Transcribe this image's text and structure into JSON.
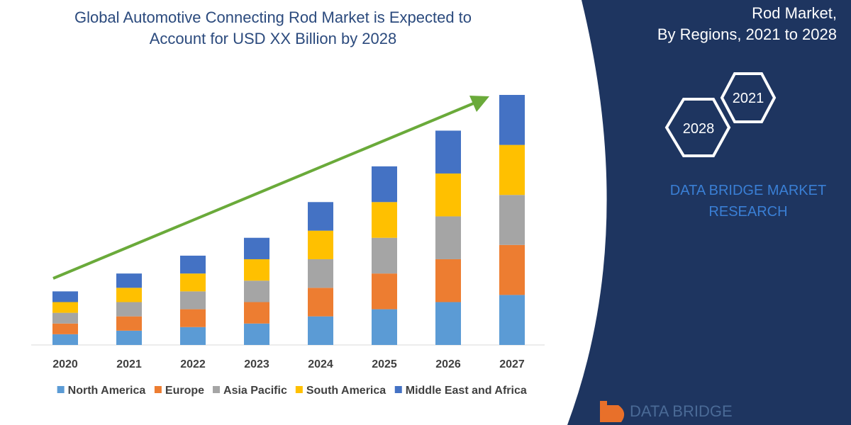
{
  "title": {
    "line1": "Global Automotive Connecting Rod Market is Expected to",
    "line2": "Account for USD XX Billion by 2028"
  },
  "side_panel": {
    "line1": "Rod Market,",
    "line2": "By Regions, 2021 to 2028",
    "hex_badges": [
      "2021",
      "2028"
    ],
    "brand_line1": "DATA BRIDGE MARKET",
    "brand_line2": "RESEARCH"
  },
  "logo": {
    "text": "DATA BRIDGE"
  },
  "colors": {
    "panel": "#1e3560",
    "trend_arrow": "#6aaa3a",
    "North America": "#5b9bd5",
    "Europe": "#ed7d31",
    "Asia Pacific": "#a5a5a5",
    "South America": "#ffc000",
    "Middle East and Africa": "#4472c4"
  },
  "chart_data": {
    "type": "bar",
    "stacked": true,
    "categories": [
      "2020",
      "2021",
      "2022",
      "2023",
      "2024",
      "2025",
      "2026",
      "2027"
    ],
    "series": [
      {
        "name": "North America",
        "values": [
          15,
          20,
          25,
          30,
          40,
          50,
          60,
          70
        ]
      },
      {
        "name": "Europe",
        "values": [
          15,
          20,
          25,
          30,
          40,
          50,
          60,
          70
        ]
      },
      {
        "name": "Asia Pacific",
        "values": [
          15,
          20,
          25,
          30,
          40,
          50,
          60,
          70
        ]
      },
      {
        "name": "South America",
        "values": [
          15,
          20,
          25,
          30,
          40,
          50,
          60,
          70
        ]
      },
      {
        "name": "Middle East and Africa",
        "values": [
          15,
          20,
          25,
          30,
          40,
          50,
          60,
          70
        ]
      }
    ],
    "ylim": [
      0,
      350
    ],
    "legend": "bottom",
    "grid": false,
    "trend_arrow": true
  }
}
